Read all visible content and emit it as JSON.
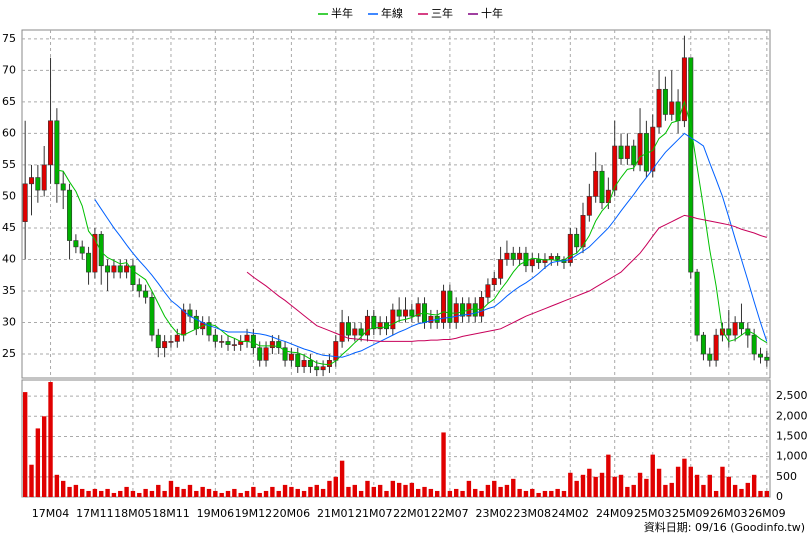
{
  "chart_data": [
    {
      "type": "candlestick",
      "up_color": "#e00000",
      "down_color": "#00b000",
      "ylim": [
        21.2,
        76.4
      ],
      "yticks": [
        25,
        30,
        35,
        40,
        45,
        50,
        55,
        60,
        65,
        70,
        75
      ],
      "grid": true,
      "legend": "top",
      "open": [
        46,
        52,
        53,
        51,
        55,
        62,
        52,
        51,
        43,
        42,
        41,
        38,
        44,
        39,
        38,
        39,
        38,
        39,
        36,
        35,
        34,
        28,
        26,
        27,
        27,
        28,
        32,
        31,
        29,
        30,
        28,
        27,
        27,
        26.5,
        26.5,
        27,
        28,
        26,
        24,
        26,
        27,
        26,
        24,
        25,
        23,
        24,
        23,
        22.5,
        23,
        24,
        27,
        30,
        28,
        29,
        28,
        31,
        29,
        30,
        29,
        32,
        31,
        32,
        31,
        33,
        30,
        31,
        30,
        35,
        30,
        33,
        31,
        33,
        31,
        34,
        36,
        37,
        40,
        41,
        40,
        41,
        39,
        40,
        39.5,
        40,
        40.5,
        40,
        39.5,
        44,
        42,
        47,
        50,
        54,
        49,
        51,
        58,
        56,
        58,
        55,
        60,
        54,
        61,
        67,
        63,
        65,
        62,
        72,
        38,
        28,
        25,
        24,
        28,
        29,
        28,
        30,
        29,
        28,
        25,
        24.5
      ],
      "high": [
        62,
        55,
        55,
        58,
        72,
        64,
        54,
        52,
        44,
        43,
        42,
        45,
        44.5,
        40,
        40,
        40,
        40,
        40,
        37,
        36,
        35,
        29,
        28,
        28,
        29,
        33,
        33,
        32,
        31,
        31,
        29,
        28,
        28,
        27.5,
        28,
        29,
        29,
        27,
        27,
        28,
        28,
        27,
        26,
        26,
        25,
        25,
        24,
        24,
        25,
        28,
        32,
        31,
        30,
        30,
        32,
        32,
        31,
        31,
        33,
        34,
        34,
        33,
        34,
        34,
        32,
        32,
        36,
        36,
        34,
        34,
        34,
        34,
        35,
        37,
        38,
        42,
        43,
        42,
        42,
        42,
        41,
        41,
        41,
        41,
        41,
        40.5,
        45,
        45,
        49,
        52,
        57,
        55,
        53,
        62,
        60,
        60,
        59,
        64,
        62,
        63,
        70,
        69,
        70,
        67,
        75.5,
        72,
        38.5,
        28.5,
        26,
        29,
        30,
        32,
        31,
        33,
        30,
        29,
        26,
        25.5
      ],
      "low": [
        40,
        47,
        49,
        50,
        52,
        49,
        48,
        40,
        41,
        40,
        36,
        37,
        36,
        35,
        37,
        37,
        37,
        35,
        34,
        33,
        27,
        24.5,
        24.5,
        26,
        26,
        27,
        30,
        28,
        28,
        27,
        26,
        26,
        25.5,
        25.5,
        25.5,
        26,
        25,
        23,
        23,
        25,
        25,
        23,
        23,
        22,
        22,
        22,
        21.5,
        21.5,
        22,
        23,
        26,
        27,
        27,
        27,
        27,
        28,
        28,
        28,
        28,
        30,
        30,
        30,
        30,
        29,
        29,
        29,
        29,
        29,
        29,
        30,
        30,
        30,
        30,
        33,
        35,
        36,
        39,
        39,
        39,
        38,
        38,
        38.5,
        38.5,
        39,
        39,
        38.5,
        39,
        41,
        41,
        46,
        49,
        48,
        48,
        50,
        55,
        55,
        54,
        54,
        53,
        53,
        60,
        62,
        62,
        60,
        61,
        37,
        27,
        24,
        23,
        23,
        27,
        26,
        27,
        28,
        26,
        24,
        23.5,
        23
      ],
      "close": [
        52,
        53,
        51,
        55,
        62,
        52,
        51,
        43,
        42,
        41,
        38,
        44,
        39,
        38,
        39,
        38,
        39,
        36,
        35,
        34,
        28,
        26,
        27,
        27,
        28,
        32,
        31,
        29,
        30,
        28,
        27,
        27,
        26.5,
        26.5,
        27,
        28,
        26,
        24,
        26,
        27,
        26,
        24,
        25,
        23,
        24,
        23,
        22.5,
        23,
        24,
        27,
        30,
        28,
        29,
        28,
        31,
        29,
        30,
        29,
        32,
        31,
        32,
        31,
        33,
        30,
        31,
        30,
        35,
        30,
        33,
        31,
        33,
        31,
        34,
        36,
        37,
        40,
        41,
        40,
        41,
        39,
        40,
        39.5,
        40,
        40.5,
        40,
        39.5,
        44,
        42,
        47,
        50,
        54,
        49,
        51,
        58,
        56,
        58,
        55,
        60,
        54,
        61,
        67,
        63,
        65,
        62,
        72,
        38,
        28,
        25,
        24,
        28,
        29,
        28,
        30,
        29,
        28,
        25,
        24.5,
        24
      ],
      "series": [
        {
          "name": "半年",
          "color": "#00c000",
          "values": [
            null,
            null,
            null,
            null,
            null,
            54.2,
            54,
            52.3,
            50.8,
            48.5,
            44.5,
            43.2,
            41.2,
            40.3,
            39.8,
            39.3,
            39.5,
            38.2,
            37.5,
            36.8,
            35,
            33,
            31,
            29.5,
            28.3,
            28,
            28.5,
            29,
            29.5,
            29.7,
            29.5,
            28.7,
            27.9,
            27.5,
            27,
            27,
            26.8,
            26.3,
            26.3,
            26.3,
            26.2,
            25.5,
            25.3,
            25.2,
            24.8,
            24.2,
            23.6,
            23.4,
            23.3,
            23.9,
            24.9,
            25.8,
            26.8,
            27.7,
            28.8,
            29.2,
            29.2,
            29.3,
            29.8,
            30.3,
            30.5,
            30.8,
            31.3,
            31.5,
            31.3,
            31.2,
            31.7,
            31.5,
            31.5,
            31.7,
            32,
            32.2,
            32,
            33,
            33.7,
            35.2,
            36.5,
            38,
            39.2,
            39.7,
            40.2,
            40.1,
            39.9,
            40,
            39.8,
            39.9,
            40.6,
            41,
            42.2,
            43.8,
            46.1,
            47.7,
            48.8,
            51.5,
            53,
            54.3,
            54.5,
            56.3,
            56.8,
            57.3,
            59.2,
            60,
            61.7,
            62,
            65,
            61.2,
            54.7,
            48.3,
            41.5,
            35.8,
            28.7,
            27,
            27.3,
            28,
            28.7,
            28.2,
            27.4,
            26.8
          ]
        },
        {
          "name": "年線",
          "color": "#0060ff",
          "values": [
            null,
            null,
            null,
            null,
            null,
            null,
            null,
            null,
            null,
            null,
            null,
            49.5,
            48,
            46.5,
            45,
            43.7,
            42.3,
            41,
            39.8,
            38.7,
            37.5,
            36.2,
            34.8,
            33.5,
            32.7,
            31.8,
            31,
            30.5,
            30,
            29.5,
            29.2,
            28.8,
            28.5,
            28.5,
            28.5,
            28.5,
            28.3,
            28.2,
            28,
            27.7,
            27.3,
            27,
            26.6,
            26.2,
            25.8,
            25.5,
            25.1,
            24.8,
            24.7,
            24.6,
            24.5,
            24.8,
            25.2,
            25.5,
            26,
            26.5,
            27,
            27.5,
            28,
            28.5,
            28.9,
            29.4,
            29.8,
            30,
            30.3,
            30.5,
            30.7,
            30.8,
            31,
            31.2,
            31.3,
            31.5,
            31.8,
            32.2,
            32.5,
            33.3,
            34.2,
            35,
            35.7,
            36.3,
            37,
            37.8,
            38.7,
            39.5,
            39.7,
            39.8,
            40,
            40.7,
            41.3,
            42,
            43,
            44,
            45,
            46.3,
            47.7,
            49,
            50.3,
            51.7,
            53,
            54.3,
            55.7,
            57,
            58,
            59,
            60,
            59.3,
            58.7,
            58,
            55.3,
            52.7,
            50,
            46.7,
            43.3,
            40,
            36.7,
            33.3,
            30,
            27
          ]
        },
        {
          "name": "三年",
          "color": "#c8005a",
          "values": [
            null,
            null,
            null,
            null,
            null,
            null,
            null,
            null,
            null,
            null,
            null,
            null,
            null,
            null,
            null,
            null,
            null,
            null,
            null,
            null,
            null,
            null,
            null,
            null,
            null,
            null,
            null,
            null,
            null,
            null,
            null,
            null,
            null,
            null,
            null,
            38,
            37.2,
            36.5,
            35.8,
            35,
            34.2,
            33.5,
            32.7,
            31.9,
            31.1,
            30.3,
            29.5,
            29.1,
            28.7,
            28.3,
            27.9,
            27.5,
            27.4,
            27.3,
            27.2,
            27.1,
            27,
            27,
            27,
            27,
            27,
            27,
            27.1,
            27.1,
            27.2,
            27.2,
            27.3,
            27.3,
            27.5,
            27.8,
            28,
            28.2,
            28.4,
            28.6,
            28.8,
            29,
            29.5,
            30,
            30.5,
            31,
            31.4,
            31.8,
            32.2,
            32.6,
            33,
            33.4,
            33.8,
            34.2,
            34.6,
            35,
            35.6,
            36.2,
            36.8,
            37.4,
            38,
            39,
            40,
            41,
            42.3,
            43.7,
            45,
            45.5,
            46,
            46.5,
            47,
            46.8,
            46.5,
            46.3,
            46.1,
            45.9,
            45.7,
            45.5,
            45.2,
            44.8,
            44.5,
            44.2,
            43.8,
            43.5
          ]
        },
        {
          "name": "十年",
          "color": "#800080"
        }
      ]
    },
    {
      "type": "bar",
      "color": "#e00000",
      "categories": [
        null,
        null,
        null,
        null,
        "17M04",
        null,
        null,
        null,
        null,
        null,
        null,
        "17M11",
        null,
        null,
        null,
        null,
        null,
        "18M05",
        null,
        null,
        null,
        null,
        null,
        "18M11",
        null,
        null,
        null,
        null,
        null,
        null,
        "19M06",
        null,
        null,
        null,
        null,
        null,
        "19M12",
        null,
        null,
        null,
        null,
        null,
        "20M06",
        null,
        null,
        null,
        null,
        null,
        null,
        "21M01",
        null,
        null,
        null,
        null,
        null,
        "21M07",
        null,
        null,
        null,
        null,
        null,
        "22M01",
        null,
        null,
        null,
        null,
        null,
        "22M07",
        null,
        null,
        null,
        null,
        null,
        null,
        "23M02",
        null,
        null,
        null,
        null,
        null,
        "23M08",
        null,
        null,
        null,
        null,
        null,
        "24M02",
        null,
        null,
        null,
        null,
        null,
        null,
        "24M09",
        null,
        null,
        null,
        null,
        null,
        "25M03",
        null,
        null,
        null,
        null,
        null,
        "25M09",
        null,
        null,
        null,
        null,
        null,
        "26M03",
        null,
        null,
        null,
        null,
        null,
        "26M09"
      ],
      "values": [
        2600,
        800,
        1700,
        2000,
        2850,
        550,
        400,
        250,
        300,
        200,
        150,
        200,
        150,
        200,
        100,
        150,
        250,
        150,
        100,
        200,
        150,
        300,
        150,
        400,
        250,
        200,
        300,
        150,
        250,
        200,
        150,
        100,
        150,
        200,
        100,
        150,
        250,
        100,
        150,
        250,
        150,
        300,
        250,
        200,
        150,
        250,
        300,
        200,
        400,
        500,
        900,
        250,
        300,
        150,
        400,
        250,
        300,
        150,
        400,
        350,
        300,
        350,
        200,
        250,
        200,
        150,
        1600,
        150,
        200,
        150,
        400,
        200,
        150,
        300,
        400,
        250,
        300,
        450,
        200,
        150,
        200,
        100,
        150,
        150,
        200,
        150,
        600,
        400,
        550,
        700,
        500,
        600,
        1050,
        500,
        550,
        250,
        300,
        600,
        450,
        1050,
        700,
        300,
        350,
        750,
        950,
        750,
        550,
        300,
        550,
        150,
        750,
        500,
        300,
        200,
        350,
        550,
        150,
        150
      ],
      "ylim": [
        0,
        2900
      ],
      "yticks": [
        0,
        500,
        {
          "value": 1000,
          "label": "1,000"
        },
        {
          "value": 1500,
          "label": "1,500"
        },
        {
          "value": 2000,
          "label": "2,000"
        },
        {
          "value": 2500,
          "label": "2,500"
        }
      ],
      "grid": true
    }
  ],
  "footer": "資料日期: 09/16 (Goodinfo.tw)"
}
